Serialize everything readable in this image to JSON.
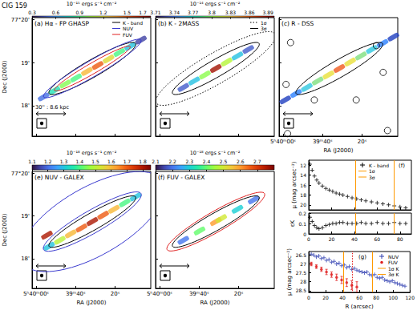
{
  "chart_data": [
    {
      "type": "image",
      "title": "(a) Hα - FP GHASP",
      "annotations": [
        "CIG 159",
        "30'' : 8.6 kpc"
      ],
      "ylabel": "Dec (J2000)",
      "xlim": [
        62,
        2
      ],
      "xticks": [
        {
          "value": 60,
          "label": "5ʰ40ᵐ00ˢ"
        },
        {
          "value": 40,
          "label": "39ᵐ40ˢ"
        },
        {
          "value": 20,
          "label": "20ˢ"
        }
      ],
      "ylim": [
        17.3,
        20.05
      ],
      "yticks": [
        {
          "value": 18,
          "label": "18'"
        },
        {
          "value": 19,
          "label": "19'"
        },
        {
          "value": 20,
          "label": "77°20'"
        }
      ],
      "tick_labels": "y",
      "colorbar": {
        "label": "10⁻¹⁵ ergs s⁻¹ cm⁻²",
        "range": [
          0.3,
          1.8
        ],
        "ticks": [
          0.3,
          0.6,
          0.9,
          1.2,
          1.5,
          1.7
        ]
      },
      "emission": {
        "x": [
          56.17,
          50.7,
          45.23,
          39.76,
          34.29,
          28.82,
          23.35,
          17.88,
          12.41,
          6.94
        ],
        "y": [
          18.21,
          18.36,
          18.51,
          18.65,
          18.8,
          18.94,
          19.09,
          19.24,
          19.38,
          19.53
        ],
        "values": [
          0.5,
          0.8,
          1.0,
          0.9,
          1.3,
          1.5,
          1.2,
          0.9,
          0.7,
          0.4
        ]
      },
      "contours": [
        {
          "name": "K - band",
          "color": "#000000",
          "line_style": "solid",
          "major_axis": [
            [
              53.43,
              18.29
            ],
            [
              9.67,
              19.45
            ]
          ],
          "axis_ratio": 0.17
        },
        {
          "name": "NUV",
          "color": "#3a3acf",
          "line_style": "solid",
          "major_axis": [
            [
              56.17,
              18.21
            ],
            [
              6.94,
              19.53
            ]
          ],
          "axis_ratio": 0.14
        },
        {
          "name": "FUV",
          "color": "#e02020",
          "line_style": "solid",
          "major_axis": [
            [
              50.7,
              18.36
            ],
            [
              12.41,
              19.38
            ]
          ],
          "axis_ratio": 0.12
        }
      ],
      "legend": "upper right"
    },
    {
      "type": "image",
      "title": "(b) K - 2MASS",
      "xlim": [
        62,
        2
      ],
      "xticks": [
        {
          "value": 60,
          "label": "5ʰ40ᵐ00ˢ"
        },
        {
          "value": 40,
          "label": "39ᵐ40ˢ"
        },
        {
          "value": 20,
          "label": "20ˢ"
        }
      ],
      "ylim": [
        17.3,
        20.05
      ],
      "yticks": [
        {
          "value": 18,
          "label": "18'"
        },
        {
          "value": 19,
          "label": "19'"
        },
        {
          "value": 20,
          "label": "77°20'"
        }
      ],
      "tick_labels": false,
      "colorbar": {
        "label": "10⁻¹⁴ ergs s⁻¹ cm⁻²",
        "range": [
          3.71,
          3.9
        ],
        "ticks": [
          3.71,
          3.74,
          3.77,
          3.8,
          3.83,
          3.86,
          3.89
        ]
      },
      "emission": {
        "x": [
          47.96,
          42.49,
          37.02,
          31.55,
          26.08,
          20.61,
          15.14
        ],
        "y": [
          18.43,
          18.58,
          18.72,
          18.87,
          19.02,
          19.16,
          19.31
        ],
        "values": [
          3.73,
          3.76,
          3.8,
          3.89,
          3.81,
          3.76,
          3.73
        ]
      },
      "contours": [
        {
          "name": "1σ",
          "color": "#000000",
          "line_style": "dotted",
          "major_axis": [
            [
              61.64,
              18.07
            ],
            [
              1.47,
              19.67
            ]
          ],
          "axis_ratio": 0.22
        },
        {
          "name": "3σ",
          "color": "#000000",
          "line_style": "solid",
          "major_axis": [
            [
              53.43,
              18.29
            ],
            [
              9.67,
              19.45
            ]
          ],
          "axis_ratio": 0.17
        }
      ],
      "legend": "upper right"
    },
    {
      "type": "image",
      "title": "(c) R - DSS",
      "xlabel": "RA (J2000)",
      "xlim": [
        62,
        2
      ],
      "xticks": [
        {
          "value": 60,
          "label": "5ʰ40ᵐ00ˢ"
        },
        {
          "value": 40,
          "label": "39ᵐ40ˢ"
        },
        {
          "value": 20,
          "label": "20ˢ"
        }
      ],
      "ylim": [
        17.3,
        20.05
      ],
      "yticks": [
        {
          "value": 18,
          "label": "18'"
        },
        {
          "value": 19,
          "label": "19'"
        },
        {
          "value": 20,
          "label": "77°20'"
        }
      ],
      "tick_labels": "x",
      "emission": {
        "x": [
          58.9,
          53.43,
          47.96,
          42.49,
          37.02,
          31.55,
          26.08,
          20.61,
          15.14,
          9.67,
          4.2
        ],
        "y": [
          18.14,
          18.29,
          18.43,
          18.58,
          18.72,
          18.87,
          19.02,
          19.16,
          19.31,
          19.45,
          19.6
        ],
        "colors": [
          "#1f3fbf",
          "#2a7fff",
          "#2fc8e0",
          "#7fe07f",
          "#e8e03a",
          "#f05a1e",
          "#e8e03a",
          "#7fe07f",
          "#2fc8e0",
          "#2a7fff",
          "#1f3fbf"
        ]
      },
      "sources": {
        "color": "#000000",
        "x": [
          56.2,
          58.5,
          44.2,
          12.8,
          9.4,
          7.2,
          23.0,
          57.7
        ],
        "y": [
          19.47,
          18.5,
          18.14,
          19.4,
          18.78,
          17.43,
          18.14,
          17.36
        ]
      },
      "contours": [
        {
          "color": "#000000",
          "line_style": "solid",
          "major_axis": [
            [
              53.43,
              18.29
            ],
            [
              9.67,
              19.45
            ]
          ],
          "axis_ratio": 0.17
        }
      ]
    },
    {
      "type": "image",
      "title": "(e) NUV - GALEX",
      "xlabel": "RA (J2000)",
      "ylabel": "Dec (J2000)",
      "xlim": [
        62,
        2
      ],
      "xticks": [
        {
          "value": 60,
          "label": "5ʰ40ᵐ00ˢ"
        },
        {
          "value": 40,
          "label": "39ᵐ40ˢ"
        },
        {
          "value": 20,
          "label": "20ˢ"
        }
      ],
      "ylim": [
        17.3,
        20.05
      ],
      "yticks": [
        {
          "value": 18,
          "label": "18'"
        },
        {
          "value": 19,
          "label": "19'"
        },
        {
          "value": 20,
          "label": "77°20'"
        }
      ],
      "tick_labels": true,
      "colorbar": {
        "label": "10⁻¹⁸ ergs s⁻¹ cm⁻²",
        "range": [
          1.1,
          1.85
        ],
        "ticks": [
          1.1,
          1.2,
          1.3,
          1.4,
          1.5,
          1.6,
          1.7,
          1.8
        ]
      },
      "emission": {
        "x": [
          53.43,
          47.96,
          42.49,
          37.02,
          31.55,
          26.08,
          20.61,
          15.14,
          9.67,
          54.5
        ],
        "y": [
          18.29,
          18.43,
          18.58,
          18.72,
          18.87,
          19.02,
          19.16,
          19.31,
          19.45,
          18.55
        ],
        "values": [
          1.3,
          1.5,
          1.6,
          1.7,
          1.8,
          1.7,
          1.6,
          1.4,
          1.3,
          1.8
        ]
      },
      "contours": [
        {
          "color": "#000000",
          "line_style": "solid",
          "major_axis": [
            [
              53.43,
              18.29
            ],
            [
              9.67,
              19.45
            ]
          ],
          "axis_ratio": 0.17
        },
        {
          "color": "#3a3acf",
          "line_style": "solid",
          "major_axis": [
            [
              56.17,
              18.21
            ],
            [
              6.94,
              19.53
            ]
          ],
          "axis_ratio": 0.2
        },
        {
          "color": "#3a3acf",
          "line_style": "solid",
          "major_axis": [
            [
              67.1,
              17.92
            ],
            [
              -4.0,
              19.82
            ]
          ],
          "axis_ratio": 0.42
        }
      ]
    },
    {
      "type": "image",
      "title": "(f) FUV - GALEX",
      "xlabel": "RA (J2000)",
      "xlim": [
        62,
        2
      ],
      "xticks": [
        {
          "value": 60,
          "label": "5ʰ40ᵐ00ˢ"
        },
        {
          "value": 40,
          "label": "39ᵐ40ˢ"
        },
        {
          "value": 20,
          "label": "20ˢ"
        }
      ],
      "ylim": [
        17.3,
        20.05
      ],
      "yticks": [
        {
          "value": 18,
          "label": "18'"
        },
        {
          "value": 19,
          "label": "19'"
        },
        {
          "value": 20,
          "label": "77°20'"
        }
      ],
      "tick_labels": "x",
      "colorbar": {
        "label": "10⁻¹⁸ ergs s⁻¹ cm⁻²",
        "range": [
          2.1,
          2.8
        ],
        "ticks": [
          2.1,
          2.2,
          2.3,
          2.4,
          2.5,
          2.6,
          2.7
        ]
      },
      "emission": {
        "x": [
          47.96,
          39.76,
          31.55,
          28.82,
          20.61,
          12.41
        ],
        "y": [
          18.43,
          18.65,
          18.87,
          18.94,
          19.16,
          19.38
        ],
        "values": [
          2.2,
          2.4,
          2.6,
          2.5,
          2.3,
          2.2
        ]
      },
      "contours": [
        {
          "color": "#000000",
          "line_style": "solid",
          "major_axis": [
            [
              53.43,
              18.29
            ],
            [
              9.67,
              19.45
            ]
          ],
          "axis_ratio": 0.17
        },
        {
          "color": "#e02020",
          "line_style": "solid",
          "major_axis": [
            [
              56.17,
              18.21
            ],
            [
              6.94,
              19.53
            ]
          ],
          "axis_ratio": 0.18
        }
      ]
    },
    {
      "type": "scatter",
      "title": "(f)",
      "ylabel": "μ (mag arcsec⁻²)",
      "xlim": [
        0,
        90
      ],
      "xticks": [
        0,
        20,
        40,
        60,
        80
      ],
      "ylim": [
        21,
        11
      ],
      "yticks": [
        12,
        14,
        16,
        18,
        20
      ],
      "tick_labels": "y",
      "series": [
        {
          "name": "K - band",
          "color": "#000000",
          "marker": "plus",
          "x": [
            1,
            3,
            5,
            7,
            9,
            12,
            15,
            18,
            21,
            24,
            27,
            30,
            34,
            38,
            42,
            46,
            50,
            55,
            60,
            65,
            70,
            75,
            80,
            85
          ],
          "values": [
            11.8,
            13.0,
            14.2,
            15.0,
            15.6,
            16.2,
            16.7,
            17.0,
            17.3,
            17.6,
            17.8,
            18.0,
            18.3,
            18.6,
            18.8,
            19.0,
            19.2,
            19.4,
            19.6,
            19.8,
            20.0,
            20.2,
            20.4,
            20.6
          ]
        }
      ],
      "vlines": [
        {
          "name": "1σ",
          "x": 41,
          "color": "#ff9900",
          "line_style": "solid"
        },
        {
          "name": "3σ",
          "x": 75,
          "color": "#ff9900",
          "line_style": "solid"
        }
      ],
      "legend": "upper right"
    },
    {
      "type": "scatter",
      "ylabel": "εK",
      "xlim": [
        0,
        90
      ],
      "xticks": [
        0,
        20,
        40,
        60,
        80
      ],
      "ylim": [
        0,
        0.2
      ],
      "yticks": [
        0,
        0.1,
        0.2
      ],
      "tick_labels": true,
      "series": [
        {
          "color": "#000000",
          "marker": "plus",
          "x": [
            1,
            3,
            5,
            7,
            9,
            12,
            15,
            18,
            21,
            24,
            27,
            30,
            34,
            38,
            42,
            46,
            50,
            55,
            60,
            65,
            70,
            75,
            80,
            85
          ],
          "values": [
            0.16,
            0.12,
            0.08,
            0.06,
            0.05,
            0.06,
            0.08,
            0.09,
            0.1,
            0.1,
            0.11,
            0.11,
            0.1,
            0.1,
            0.1,
            0.11,
            0.1,
            0.1,
            0.11,
            0.1,
            0.1,
            0.11,
            0.1,
            0.1
          ]
        }
      ],
      "vlines": [
        {
          "x": 41,
          "color": "#ff9900",
          "line_style": "solid"
        },
        {
          "x": 75,
          "color": "#ff9900",
          "line_style": "solid"
        }
      ]
    },
    {
      "type": "scatter",
      "title": "(g)",
      "xlabel": "R (arcsec)",
      "ylabel": "μ (mag arcsec⁻²)",
      "xlim": [
        0,
        120
      ],
      "xticks": [
        0,
        20,
        40,
        60,
        80,
        100,
        120
      ],
      "ylim": [
        28.6,
        26.3
      ],
      "yticks": [
        26.5,
        27,
        27.5,
        28,
        28.5
      ],
      "tick_labels": true,
      "series": [
        {
          "name": "NUV",
          "color": "#2f3fb0",
          "marker": "plus",
          "x": [
            3,
            6,
            9,
            12,
            15,
            18,
            21,
            24,
            27,
            30,
            33,
            36,
            39,
            42,
            45,
            48,
            51,
            54,
            57,
            60,
            63,
            66,
            69,
            72,
            75,
            78,
            81,
            84,
            87,
            90,
            93,
            96,
            99,
            102,
            105,
            108,
            111,
            114
          ],
          "values": [
            26.45,
            26.5,
            26.6,
            26.55,
            26.7,
            26.65,
            26.8,
            26.75,
            26.9,
            26.85,
            27.0,
            26.95,
            27.1,
            27.05,
            27.2,
            27.15,
            27.3,
            27.25,
            27.35,
            27.4,
            27.45,
            27.5,
            27.45,
            27.6,
            27.65,
            27.6,
            27.75,
            27.8,
            27.75,
            27.9,
            27.95,
            28.0,
            27.95,
            28.05,
            28.1,
            28.15,
            28.2,
            28.25
          ]
        },
        {
          "name": "FUV",
          "color": "#e02020",
          "marker": "circle",
          "x": [
            3,
            9,
            15,
            21,
            27,
            33,
            39,
            45,
            51,
            57
          ],
          "values": [
            27.0,
            27.15,
            27.3,
            27.45,
            27.6,
            27.75,
            27.9,
            28.05,
            28.2,
            28.3
          ],
          "errors": [
            0.1,
            0.1,
            0.12,
            0.15,
            0.15,
            0.18,
            0.2,
            0.22,
            0.25,
            0.3
          ]
        }
      ],
      "vlines": [
        {
          "name": "1σ K",
          "x": 41,
          "color": "#ff9900",
          "line_style": "solid"
        },
        {
          "name": "3σ K",
          "x": 75,
          "color": "#ff9900",
          "line_style": "solid"
        },
        {
          "x": 52,
          "color": "#e02020",
          "line_style": "dotted"
        }
      ],
      "legend": "upper right"
    }
  ]
}
